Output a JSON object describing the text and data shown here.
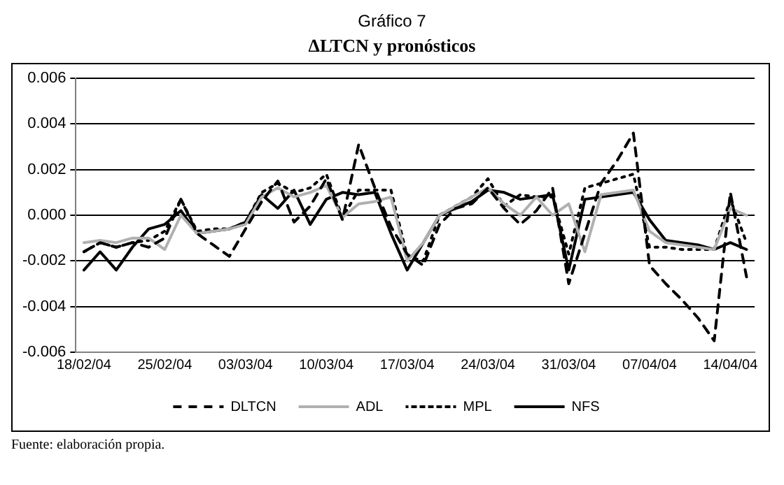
{
  "chart_data": {
    "type": "line",
    "title": "Gráfico 7",
    "subtitle": "ΔLTCN y pronósticos",
    "annotations": [
      "Fuente: elaboración propia."
    ],
    "categories": [
      "18/02/04",
      null,
      null,
      null,
      null,
      "25/02/04",
      null,
      null,
      null,
      null,
      "03/03/04",
      null,
      null,
      null,
      null,
      "10/03/04",
      null,
      null,
      null,
      null,
      "17/03/04",
      null,
      null,
      null,
      null,
      "24/03/04",
      null,
      null,
      null,
      null,
      "31/03/04",
      null,
      null,
      null,
      null,
      "07/04/04",
      null,
      null,
      null,
      null,
      "14/04/04",
      null
    ],
    "series": [
      {
        "name": "DLTCN",
        "color": "#000000",
        "line_style": "dashed",
        "values": [
          -0.0016,
          -0.0012,
          -0.0014,
          -0.0012,
          -0.0014,
          -0.001,
          0.0007,
          -0.0008,
          -0.0013,
          -0.0018,
          -0.0006,
          0.0006,
          0.0015,
          -0.0003,
          0.0004,
          0.0016,
          -0.0002,
          0.0031,
          0.0012,
          -0.0005,
          -0.0017,
          -0.0022,
          -0.0004,
          0.0003,
          0.0005,
          0.0012,
          0.0003,
          -0.0004,
          0.0002,
          0.0012,
          -0.003,
          -0.0008,
          0.0014,
          0.0024,
          0.0036,
          -0.0022,
          -0.003,
          -0.0037,
          -0.0045,
          -0.0055,
          0.001,
          -0.0027
        ]
      },
      {
        "name": "ADL",
        "color": "#b0b0b0",
        "line_style": "solid",
        "values": [
          -0.0012,
          -0.0011,
          -0.0012,
          -0.001,
          -0.001,
          -0.0015,
          0.0,
          -0.0008,
          -0.0007,
          -0.0006,
          -0.0004,
          0.0008,
          0.0012,
          0.0008,
          0.001,
          0.0013,
          -0.0001,
          0.0005,
          0.0006,
          0.0008,
          -0.002,
          -0.0012,
          0.0,
          0.0004,
          0.0008,
          0.0012,
          0.0005,
          0.0,
          0.0008,
          0.0,
          0.0005,
          -0.0016,
          0.0009,
          0.001,
          0.0011,
          -0.0007,
          -0.0012,
          -0.0013,
          -0.0014,
          -0.0015,
          0.0003,
          0.0
        ]
      },
      {
        "name": "MPL",
        "color": "#000000",
        "line_style": "dotted",
        "values": [
          -0.0016,
          -0.0012,
          -0.0014,
          -0.0012,
          -0.0011,
          -0.0007,
          0.0007,
          -0.0007,
          -0.0006,
          -0.0006,
          -0.0003,
          0.001,
          0.0014,
          0.001,
          0.0012,
          0.0018,
          -0.0001,
          0.0011,
          0.0011,
          0.0011,
          -0.0018,
          -0.002,
          0.0,
          0.0004,
          0.0008,
          0.0016,
          0.0004,
          0.0009,
          0.0008,
          0.0008,
          -0.0017,
          0.0012,
          0.0014,
          0.0016,
          0.0018,
          -0.0014,
          -0.0014,
          -0.0015,
          -0.0015,
          -0.0015,
          0.0007,
          -0.0012
        ]
      },
      {
        "name": "NFS",
        "color": "#000000",
        "line_style": "solid",
        "values": [
          -0.0024,
          -0.0016,
          -0.0024,
          -0.0014,
          -0.0006,
          -0.0004,
          0.0002,
          -0.0008,
          -0.0007,
          -0.0006,
          -0.0003,
          0.0009,
          0.0003,
          0.0011,
          -0.0004,
          0.0007,
          0.001,
          0.0009,
          0.001,
          -0.0008,
          -0.0024,
          -0.0012,
          0.0,
          0.0003,
          0.0006,
          0.0011,
          0.001,
          0.0007,
          0.0008,
          0.0009,
          -0.0024,
          0.0007,
          0.0008,
          0.0009,
          0.001,
          -0.0002,
          -0.0011,
          -0.0012,
          -0.0013,
          -0.0015,
          -0.0012,
          -0.0015
        ]
      }
    ],
    "ylim": [
      -0.006,
      0.006
    ],
    "yticks": [
      -0.006,
      -0.004,
      -0.002,
      {
        "value": 0,
        "label": "0.000"
      },
      0.002,
      0.004,
      0.006
    ],
    "grid": "y",
    "legend": "bottom",
    "marker": "none"
  }
}
